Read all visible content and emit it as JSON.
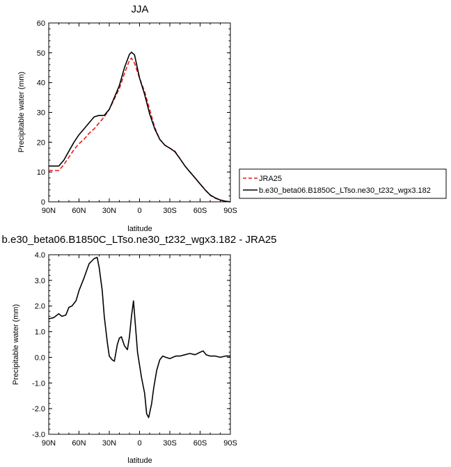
{
  "chart_data": [
    {
      "type": "line",
      "title": "JJA",
      "xlabel": "latitude",
      "ylabel": "Precipitable water (mm)",
      "xlim": [
        90,
        -90
      ],
      "ylim": [
        0,
        60
      ],
      "x_unit_note": "latitude in degrees, positive = north",
      "xticks": [
        90,
        60,
        30,
        0,
        -30,
        -60,
        -90
      ],
      "xtick_labels": [
        "90N",
        "60N",
        "30N",
        "0",
        "30S",
        "60S",
        "90S"
      ],
      "yticks": [
        0,
        10,
        20,
        30,
        40,
        50,
        60
      ],
      "ytick_labels": [
        "0",
        "10",
        "20",
        "30",
        "40",
        "50",
        "60"
      ],
      "legend_position": "outside-right",
      "series": [
        {
          "name": "JRA25",
          "color": "#e41a1c",
          "dash": "dashed",
          "x": [
            90,
            80,
            75,
            70,
            65,
            60,
            55,
            50,
            45,
            40,
            35,
            30,
            25,
            20,
            15,
            10,
            8,
            5,
            0,
            -5,
            -10,
            -15,
            -20,
            -25,
            -30,
            -35,
            -40,
            -45,
            -50,
            -55,
            -60,
            -65,
            -70,
            -75,
            -80,
            -85,
            -90
          ],
          "y": [
            10.5,
            10.5,
            12.5,
            15.0,
            17.5,
            19.5,
            21.0,
            23.0,
            24.5,
            26.5,
            28.5,
            31.0,
            34.5,
            38.0,
            43.0,
            47.5,
            48.2,
            46.5,
            41.5,
            37.0,
            31.0,
            25.0,
            21.0,
            19.0,
            18.0,
            17.0,
            14.5,
            12.0,
            10.0,
            8.0,
            6.0,
            4.0,
            2.2,
            1.2,
            0.6,
            0.2,
            0.0
          ]
        },
        {
          "name": "b.e30_beta06.B1850C_LTso.ne30_t232_wgx3.182",
          "color": "#000000",
          "dash": "solid",
          "x": [
            90,
            80,
            75,
            70,
            65,
            60,
            55,
            50,
            45,
            40,
            35,
            30,
            25,
            20,
            15,
            10,
            8,
            5,
            0,
            -5,
            -10,
            -15,
            -20,
            -25,
            -30,
            -35,
            -40,
            -45,
            -50,
            -55,
            -60,
            -65,
            -70,
            -75,
            -80,
            -85,
            -90
          ],
          "y": [
            12.0,
            12.0,
            14.0,
            17.0,
            20.0,
            22.5,
            24.5,
            26.5,
            28.5,
            29.0,
            29.0,
            31.0,
            35.0,
            39.0,
            45.0,
            49.5,
            50.2,
            49.3,
            41.5,
            36.0,
            29.5,
            24.5,
            21.0,
            19.0,
            18.0,
            16.8,
            14.5,
            12.0,
            10.0,
            8.0,
            6.0,
            4.0,
            2.3,
            1.3,
            0.6,
            0.2,
            0.0
          ]
        }
      ]
    },
    {
      "type": "line",
      "title": "b.e30_beta06.B1850C_LTso.ne30_t232_wgx3.182 - JRA25",
      "xlabel": "latitude",
      "ylabel": "Precipitable water (mm)",
      "xlim": [
        90,
        -90
      ],
      "ylim": [
        -3.0,
        4.0
      ],
      "xticks": [
        90,
        60,
        30,
        0,
        -30,
        -60,
        -90
      ],
      "xtick_labels": [
        "90N",
        "60N",
        "30N",
        "0",
        "30S",
        "60S",
        "90S"
      ],
      "yticks": [
        -3,
        -2,
        -1,
        0,
        1,
        2,
        3,
        4
      ],
      "ytick_labels": [
        "-3.0",
        "-2.0",
        "-1.0",
        "0.0",
        "1.0",
        "2.0",
        "3.0",
        "4.0"
      ],
      "series": [
        {
          "color": "#000000",
          "dash": "solid",
          "x": [
            90,
            85,
            80,
            77,
            73,
            70,
            67,
            63,
            60,
            55,
            50,
            45,
            42,
            40,
            37,
            35,
            32,
            30,
            27,
            25,
            22,
            20,
            18,
            15,
            12,
            10,
            8,
            6,
            4,
            2,
            0,
            -2,
            -5,
            -7,
            -9,
            -12,
            -14,
            -17,
            -20,
            -23,
            -26,
            -30,
            -33,
            -36,
            -40,
            -45,
            -50,
            -55,
            -60,
            -63,
            -66,
            -70,
            -75,
            -80,
            -85,
            -90
          ],
          "y": [
            1.5,
            1.55,
            1.7,
            1.6,
            1.65,
            1.95,
            2.0,
            2.2,
            2.6,
            3.1,
            3.65,
            3.85,
            3.9,
            3.5,
            2.6,
            1.6,
            0.6,
            0.05,
            -0.1,
            -0.15,
            0.5,
            0.75,
            0.8,
            0.45,
            0.3,
            0.8,
            1.6,
            2.2,
            1.2,
            0.2,
            -0.3,
            -0.8,
            -1.4,
            -2.2,
            -2.35,
            -1.8,
            -1.2,
            -0.5,
            -0.1,
            0.05,
            0.0,
            -0.05,
            0.0,
            0.05,
            0.05,
            0.1,
            0.15,
            0.1,
            0.2,
            0.25,
            0.1,
            0.05,
            0.05,
            0.0,
            0.05,
            0.05
          ]
        }
      ]
    }
  ]
}
